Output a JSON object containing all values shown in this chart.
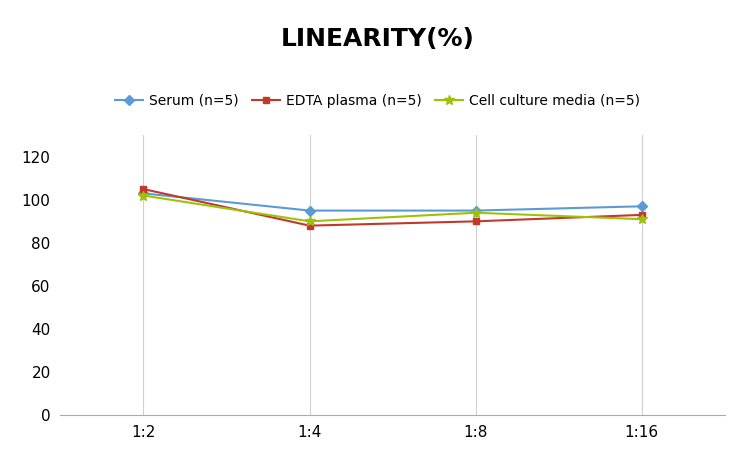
{
  "title": "LINEARITY(%)",
  "x_labels": [
    "1:2",
    "1:4",
    "1:8",
    "1:16"
  ],
  "x_positions": [
    0,
    1,
    2,
    3
  ],
  "series": [
    {
      "label": "Serum (n=5)",
      "values": [
        103,
        95,
        95,
        97
      ],
      "color": "#5B9BD5",
      "marker": "D",
      "markersize": 5,
      "linewidth": 1.5
    },
    {
      "label": "EDTA plasma (n=5)",
      "values": [
        105,
        88,
        90,
        93
      ],
      "color": "#C0392B",
      "marker": "s",
      "markersize": 5,
      "linewidth": 1.5
    },
    {
      "label": "Cell culture media (n=5)",
      "values": [
        102,
        90,
        94,
        91
      ],
      "color": "#9DC209",
      "marker": "*",
      "markersize": 7,
      "linewidth": 1.5
    }
  ],
  "ylim": [
    0,
    130
  ],
  "yticks": [
    0,
    20,
    40,
    60,
    80,
    100,
    120
  ],
  "title_fontsize": 18,
  "legend_fontsize": 10,
  "tick_fontsize": 11,
  "background_color": "#ffffff",
  "grid_color": "#d0d0d0"
}
